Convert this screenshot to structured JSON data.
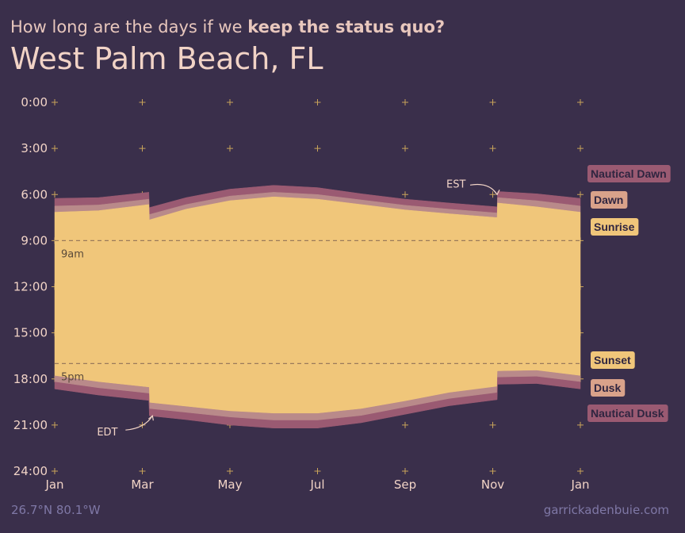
{
  "header": {
    "subtitle_prefix": "How long are the days if we ",
    "subtitle_bold": "keep the status quo?",
    "title": "West Palm Beach, FL"
  },
  "footer": {
    "coords": "26.7°N 80.1°W",
    "credit": "garrickadenbuie.com"
  },
  "colors": {
    "background": "#3a2f4b",
    "nautical": "#9a5a72",
    "civil": "#b98a8a",
    "day": "#f0c67a",
    "text": "#f1d3c6",
    "muted": "#7f78a6",
    "grid_marker": "#c8a35a"
  },
  "chart_data": {
    "type": "area",
    "ylim": [
      0,
      24
    ],
    "y_reversed": true,
    "y_ticks": [
      "0:00",
      "3:00",
      "6:00",
      "9:00",
      "12:00",
      "15:00",
      "18:00",
      "21:00",
      "24:00"
    ],
    "y_tick_values": [
      0,
      3,
      6,
      9,
      12,
      15,
      18,
      21,
      24
    ],
    "x_ticks": [
      "Jan",
      "Mar",
      "May",
      "Jul",
      "Sep",
      "Nov",
      "Jan"
    ],
    "x_tick_values": [
      0,
      2,
      4,
      6,
      8,
      10,
      12
    ],
    "xlim": [
      0,
      12
    ],
    "x": [
      0,
      1,
      2.15,
      2.16,
      3,
      4,
      5,
      6,
      7,
      8,
      9,
      10.1,
      10.11,
      11,
      12
    ],
    "series": [
      {
        "name": "Nautical Dawn",
        "values": [
          6.25,
          6.2,
          5.85,
          6.85,
          6.2,
          5.65,
          5.4,
          5.55,
          5.95,
          6.3,
          6.55,
          6.8,
          5.8,
          5.95,
          6.25
        ]
      },
      {
        "name": "Dawn",
        "values": [
          6.75,
          6.68,
          6.3,
          7.3,
          6.65,
          6.1,
          5.85,
          6.0,
          6.35,
          6.7,
          6.95,
          7.2,
          6.2,
          6.4,
          6.75
        ]
      },
      {
        "name": "Sunrise",
        "values": [
          7.15,
          7.05,
          6.65,
          7.65,
          6.95,
          6.4,
          6.15,
          6.3,
          6.65,
          7.0,
          7.25,
          7.5,
          6.55,
          6.8,
          7.15
        ]
      },
      {
        "name": "Sunset",
        "values": [
          17.8,
          18.2,
          18.55,
          19.55,
          19.8,
          20.1,
          20.25,
          20.25,
          19.95,
          19.45,
          18.9,
          18.5,
          17.5,
          17.45,
          17.8
        ]
      },
      {
        "name": "Dusk",
        "values": [
          18.2,
          18.6,
          18.95,
          19.95,
          20.2,
          20.5,
          20.7,
          20.7,
          20.4,
          19.85,
          19.3,
          18.9,
          17.9,
          17.85,
          18.2
        ]
      },
      {
        "name": "Nautical Dusk",
        "values": [
          18.65,
          19.05,
          19.4,
          20.4,
          20.65,
          21.0,
          21.2,
          21.2,
          20.85,
          20.3,
          19.75,
          19.35,
          18.35,
          18.3,
          18.65
        ]
      }
    ],
    "reference_lines": [
      {
        "label": "9am",
        "y": 9
      },
      {
        "label": "5pm",
        "y": 17
      }
    ],
    "annotations": [
      {
        "label": "EST",
        "x": 10.1,
        "y": 5.9
      },
      {
        "label": "EDT",
        "x": 2.16,
        "y": 20.5
      }
    ],
    "legend": [
      "Nautical Dawn",
      "Dawn",
      "Sunrise",
      "Sunset",
      "Dusk",
      "Nautical Dusk"
    ],
    "legend_placement": "right"
  }
}
